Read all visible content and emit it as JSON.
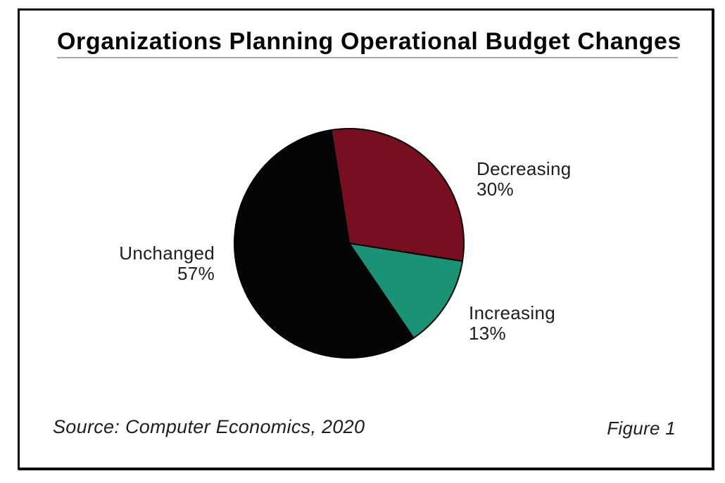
{
  "figure": {
    "title": "Organizations Planning Operational Budget Changes",
    "source": "Source: Computer Economics, 2020",
    "figure_label": "Figure 1"
  },
  "colors": {
    "slice_decreasing": "#7A0E21",
    "slice_increasing": "#1A9275",
    "slice_unchanged": "#050505",
    "slice_outline": "#000000",
    "frame_border": "#0a0a0a",
    "title_text": "#050505",
    "title_rule": "#a9a9a9",
    "label_text": "#1e1e1e",
    "background": "#ffffff"
  },
  "chart_data": {
    "type": "pie",
    "title": "Organizations Planning Operational Budget Changes",
    "segments": [
      {
        "label": "Decreasing",
        "value": 30,
        "display": "30%",
        "color": "#7A0E21"
      },
      {
        "label": "Increasing",
        "value": 13,
        "display": "13%",
        "color": "#1A9275"
      },
      {
        "label": "Unchanged",
        "value": 57,
        "display": "57%",
        "color": "#050505"
      }
    ],
    "start_angle_deg": -9,
    "direction": "clockwise",
    "legend_position": "outside-labels",
    "source": "Source: Computer Economics, 2020",
    "figure_label": "Figure 1"
  }
}
